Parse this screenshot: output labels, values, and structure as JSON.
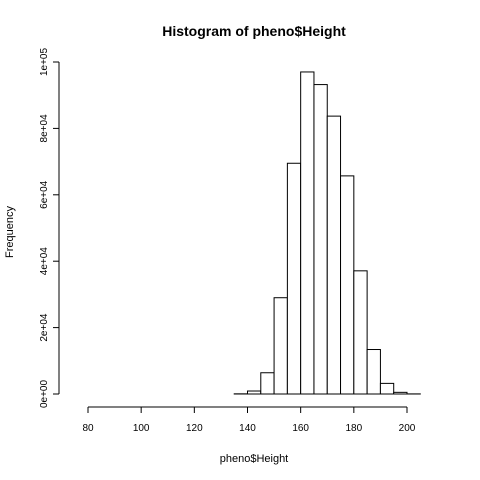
{
  "chart_data": {
    "type": "bar",
    "title": "Histogram of pheno$Height",
    "xlabel": "pheno$Height",
    "ylabel": "Frequency",
    "bin_width": 5,
    "bin_edges_start": 75,
    "bin_edges_end": 210,
    "bins": [
      {
        "x0": 75,
        "x1": 80,
        "count": 0
      },
      {
        "x0": 80,
        "x1": 85,
        "count": 0
      },
      {
        "x0": 85,
        "x1": 90,
        "count": 0
      },
      {
        "x0": 90,
        "x1": 95,
        "count": 0
      },
      {
        "x0": 95,
        "x1": 100,
        "count": 0
      },
      {
        "x0": 100,
        "x1": 105,
        "count": 0
      },
      {
        "x0": 105,
        "x1": 110,
        "count": 0
      },
      {
        "x0": 110,
        "x1": 115,
        "count": 0
      },
      {
        "x0": 115,
        "x1": 120,
        "count": 0
      },
      {
        "x0": 120,
        "x1": 125,
        "count": 0
      },
      {
        "x0": 125,
        "x1": 130,
        "count": 0
      },
      {
        "x0": 130,
        "x1": 135,
        "count": 0
      },
      {
        "x0": 135,
        "x1": 140,
        "count": 50
      },
      {
        "x0": 140,
        "x1": 145,
        "count": 900
      },
      {
        "x0": 145,
        "x1": 150,
        "count": 6400
      },
      {
        "x0": 150,
        "x1": 155,
        "count": 29000
      },
      {
        "x0": 155,
        "x1": 160,
        "count": 69500
      },
      {
        "x0": 160,
        "x1": 165,
        "count": 97000
      },
      {
        "x0": 165,
        "x1": 170,
        "count": 93200
      },
      {
        "x0": 170,
        "x1": 175,
        "count": 83700
      },
      {
        "x0": 175,
        "x1": 180,
        "count": 65700
      },
      {
        "x0": 180,
        "x1": 185,
        "count": 37100
      },
      {
        "x0": 185,
        "x1": 190,
        "count": 13400
      },
      {
        "x0": 190,
        "x1": 195,
        "count": 3200
      },
      {
        "x0": 195,
        "x1": 200,
        "count": 500
      },
      {
        "x0": 200,
        "x1": 205,
        "count": 30
      },
      {
        "x0": 205,
        "x1": 210,
        "count": 0
      }
    ],
    "xlim": [
      75,
      210
    ],
    "ylim": [
      0,
      100000
    ],
    "x_ticks": [
      80,
      100,
      120,
      140,
      160,
      180,
      200
    ],
    "x_tick_labels": [
      "80",
      "100",
      "120",
      "140",
      "160",
      "180",
      "200"
    ],
    "y_ticks": [
      0,
      20000,
      40000,
      60000,
      80000,
      100000
    ],
    "y_tick_labels": [
      "0e+00",
      "2e+04",
      "4e+04",
      "6e+04",
      "8e+04",
      "1e+05"
    ],
    "grid": false,
    "bar_fill": "#ffffff",
    "bar_stroke": "#000000"
  }
}
